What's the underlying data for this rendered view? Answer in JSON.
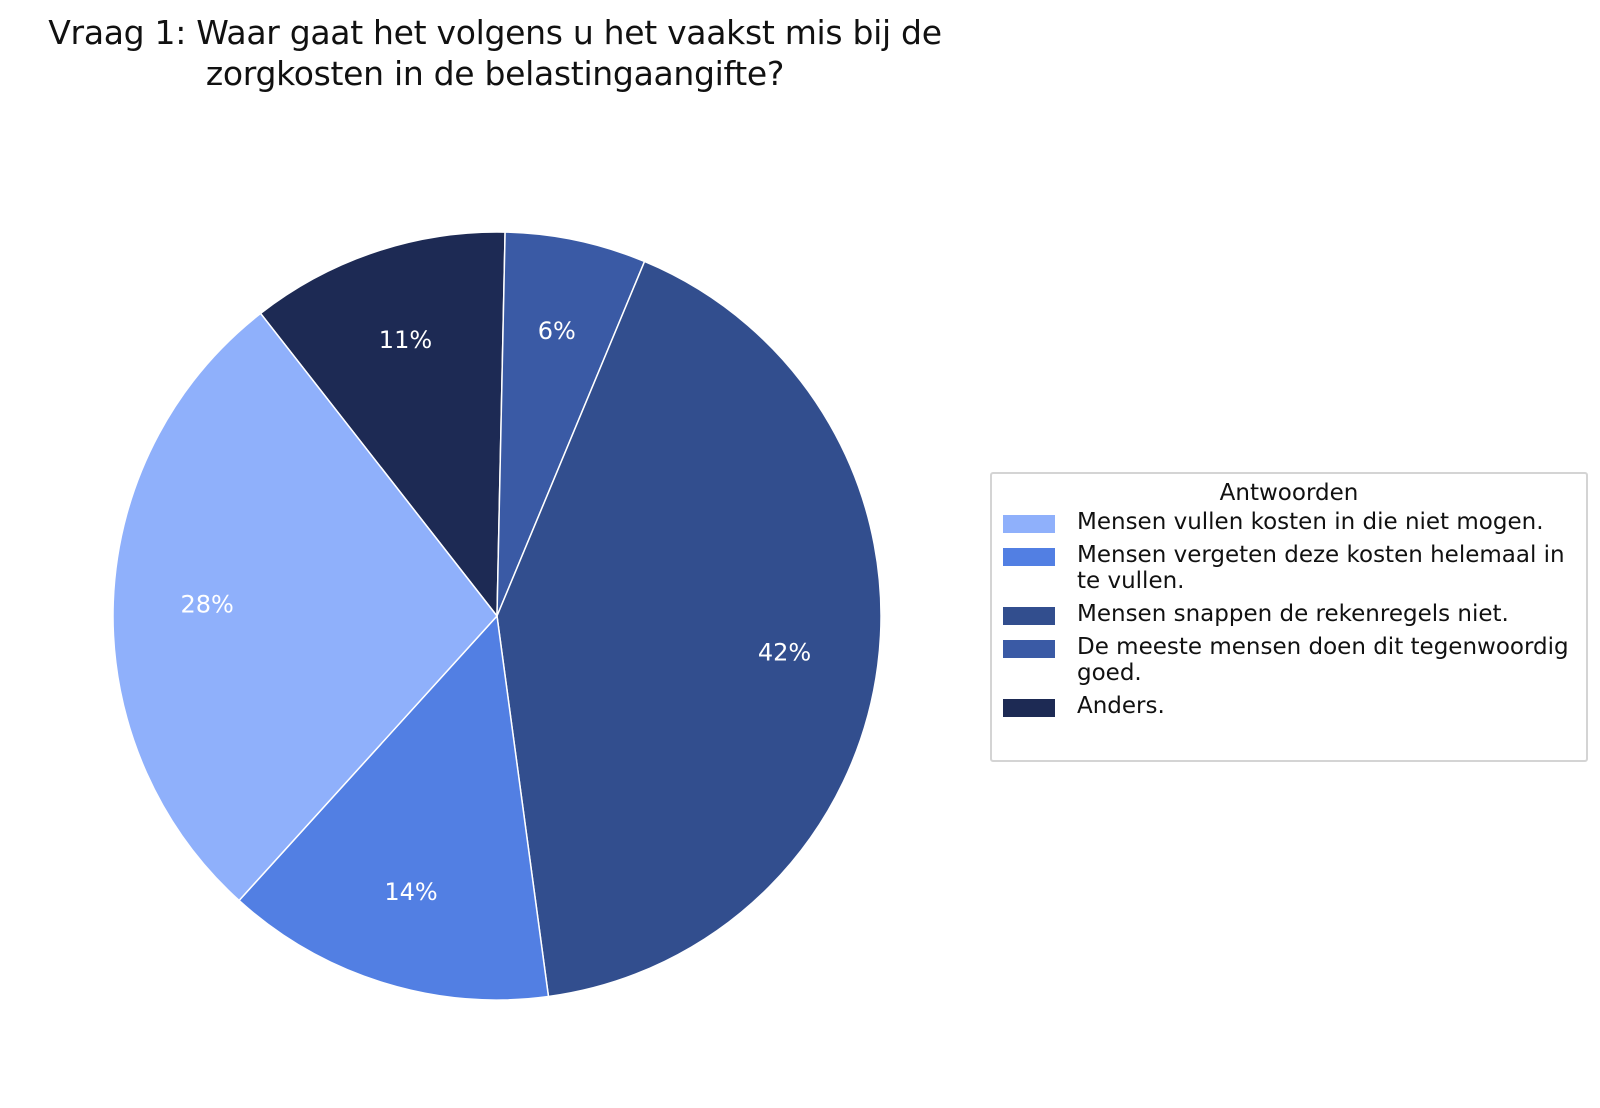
{
  "chart_data": {
    "type": "pie",
    "title_lines": [
      "Vraag 1: Waar gaat het volgens u het vaakst mis bij de",
      "zorgkosten in de belastingaangifte?"
    ],
    "legend_title": "Antwoorden",
    "legend_position": "right",
    "start_angle_deg": -38,
    "direction": "clockwise",
    "slices": [
      {
        "label": "Mensen vullen kosten in die niet mogen.",
        "value": 28,
        "display": "28%",
        "color": "#8fb0fb"
      },
      {
        "label": "Mensen vergeten deze kosten helemaal in te vullen.",
        "value": 14,
        "display": "14%",
        "color": "#527fe3"
      },
      {
        "label": "Mensen snappen de rekenregels niet.",
        "value": 42,
        "display": "42%",
        "color": "#324e8e"
      },
      {
        "label": "De meeste mensen doen dit tegenwoordig goed.",
        "value": 6,
        "display": "6%",
        "color": "#3a5aa5"
      },
      {
        "label": "Anders.",
        "value": 11,
        "display": "11%",
        "color": "#1d2a54"
      }
    ],
    "draw_order": [
      4,
      3,
      2,
      1,
      0
    ]
  }
}
